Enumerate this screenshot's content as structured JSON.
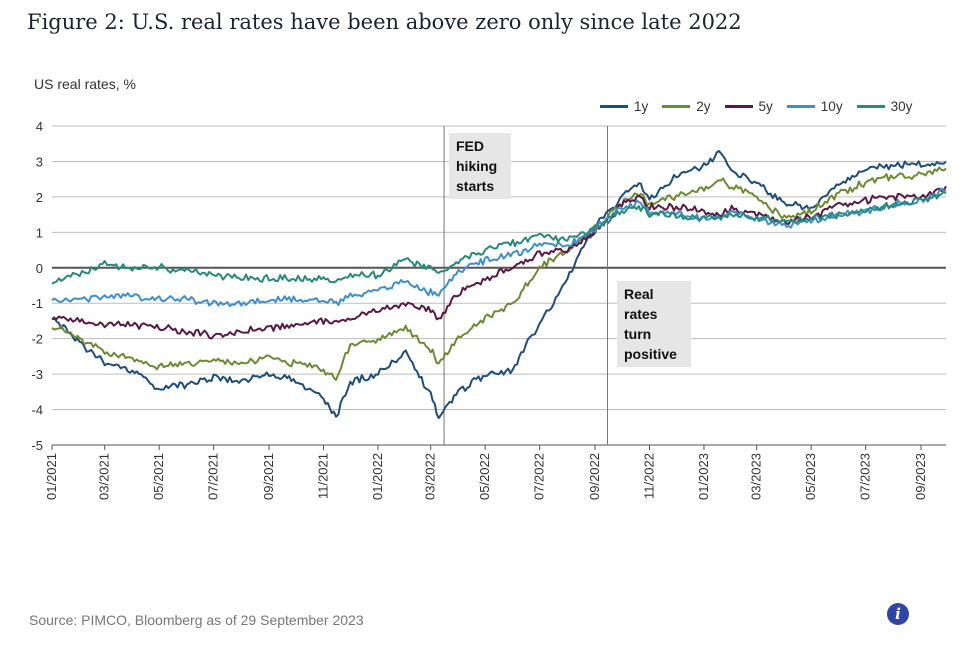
{
  "title": "Figure 2: U.S. real rates have been above zero only since late 2022",
  "source": "Source: PIMCO, Bloomberg as of 29 September 2023",
  "info_icon": "info-icon",
  "annotations": {
    "fed": "FED hiking starts",
    "real": "Real rates turn positive"
  },
  "chart_data": {
    "type": "line",
    "ylabel": "US real rates, %",
    "xlabel": "",
    "ylim": [
      -5,
      4
    ],
    "yticks": [
      "4",
      "3",
      "2",
      "1",
      "0",
      "-1",
      "-2",
      "-3",
      "-4",
      "-5"
    ],
    "xticks": [
      "01/2021",
      "03/2021",
      "05/2021",
      "07/2021",
      "09/2021",
      "11/2021",
      "01/2022",
      "03/2022",
      "05/2022",
      "07/2022",
      "09/2022",
      "11/2022",
      "01/2023",
      "03/2023",
      "05/2023",
      "07/2023",
      "09/2023"
    ],
    "x_start": "2021-01-01",
    "x_end": "2023-09-29",
    "grid": "horizontal",
    "legend_position": "top-right",
    "vlines": [
      "2022-03-16",
      "2022-09-15"
    ],
    "x": [
      "2021-01-01",
      "2021-02-01",
      "2021-03-01",
      "2021-04-01",
      "2021-05-01",
      "2021-06-01",
      "2021-07-01",
      "2021-08-01",
      "2021-09-01",
      "2021-10-01",
      "2021-11-01",
      "2021-11-15",
      "2021-12-01",
      "2022-01-01",
      "2022-02-01",
      "2022-03-01",
      "2022-03-10",
      "2022-04-01",
      "2022-05-01",
      "2022-06-01",
      "2022-06-20",
      "2022-07-01",
      "2022-08-01",
      "2022-09-01",
      "2022-10-01",
      "2022-10-20",
      "2022-11-01",
      "2022-12-01",
      "2023-01-01",
      "2023-01-20",
      "2023-02-01",
      "2023-03-01",
      "2023-04-01",
      "2023-05-01",
      "2023-06-01",
      "2023-07-01",
      "2023-08-01",
      "2023-09-01",
      "2023-09-29"
    ],
    "series": [
      {
        "name": "1y",
        "color": "#1f4e79",
        "values": [
          -1.4,
          -2.1,
          -2.7,
          -2.9,
          -3.4,
          -3.3,
          -3.1,
          -3.2,
          -3.0,
          -3.2,
          -3.7,
          -4.2,
          -3.2,
          -3.0,
          -2.4,
          -3.6,
          -4.2,
          -3.5,
          -3.0,
          -2.9,
          -2.0,
          -1.6,
          -0.3,
          1.2,
          2.0,
          2.4,
          1.9,
          2.6,
          2.9,
          3.3,
          2.7,
          2.4,
          1.8,
          1.7,
          2.3,
          2.8,
          2.9,
          2.9,
          3.0
        ]
      },
      {
        "name": "2y",
        "color": "#6f8a35",
        "values": [
          -1.6,
          -2.0,
          -2.4,
          -2.6,
          -2.8,
          -2.7,
          -2.6,
          -2.7,
          -2.5,
          -2.7,
          -2.9,
          -3.1,
          -2.2,
          -2.0,
          -1.7,
          -2.3,
          -2.7,
          -2.0,
          -1.4,
          -1.0,
          -0.4,
          0.0,
          0.5,
          1.1,
          1.8,
          2.1,
          1.8,
          2.0,
          2.2,
          2.5,
          2.3,
          2.0,
          1.4,
          1.6,
          2.1,
          2.4,
          2.6,
          2.6,
          2.8
        ]
      },
      {
        "name": "5y",
        "color": "#5a1a45",
        "values": [
          -1.4,
          -1.5,
          -1.6,
          -1.6,
          -1.7,
          -1.8,
          -1.9,
          -1.8,
          -1.7,
          -1.6,
          -1.5,
          -1.6,
          -1.4,
          -1.2,
          -1.0,
          -1.2,
          -1.4,
          -0.7,
          -0.3,
          0.0,
          0.2,
          0.4,
          0.5,
          1.0,
          1.8,
          2.0,
          1.7,
          1.7,
          1.6,
          1.5,
          1.7,
          1.5,
          1.3,
          1.4,
          1.8,
          1.9,
          2.0,
          2.0,
          2.3
        ]
      },
      {
        "name": "10y",
        "color": "#3f8fcc",
        "values": [
          -0.9,
          -0.9,
          -0.8,
          -0.8,
          -0.9,
          -0.9,
          -1.0,
          -1.0,
          -0.9,
          -0.9,
          -0.9,
          -1.0,
          -0.8,
          -0.6,
          -0.4,
          -0.7,
          -0.8,
          -0.1,
          0.2,
          0.4,
          0.5,
          0.7,
          0.6,
          1.1,
          1.7,
          1.8,
          1.6,
          1.5,
          1.4,
          1.4,
          1.6,
          1.4,
          1.2,
          1.3,
          1.5,
          1.6,
          1.8,
          1.9,
          2.2
        ]
      },
      {
        "name": "30y",
        "color": "#2a8a7a",
        "values": [
          -0.4,
          -0.2,
          0.1,
          0.0,
          0.0,
          -0.1,
          -0.2,
          -0.3,
          -0.3,
          -0.3,
          -0.3,
          -0.4,
          -0.2,
          -0.2,
          0.2,
          0.0,
          -0.2,
          0.2,
          0.5,
          0.7,
          0.8,
          0.9,
          0.8,
          1.1,
          1.6,
          1.7,
          1.5,
          1.5,
          1.4,
          1.4,
          1.5,
          1.4,
          1.3,
          1.4,
          1.5,
          1.6,
          1.8,
          1.9,
          2.1
        ]
      }
    ]
  }
}
